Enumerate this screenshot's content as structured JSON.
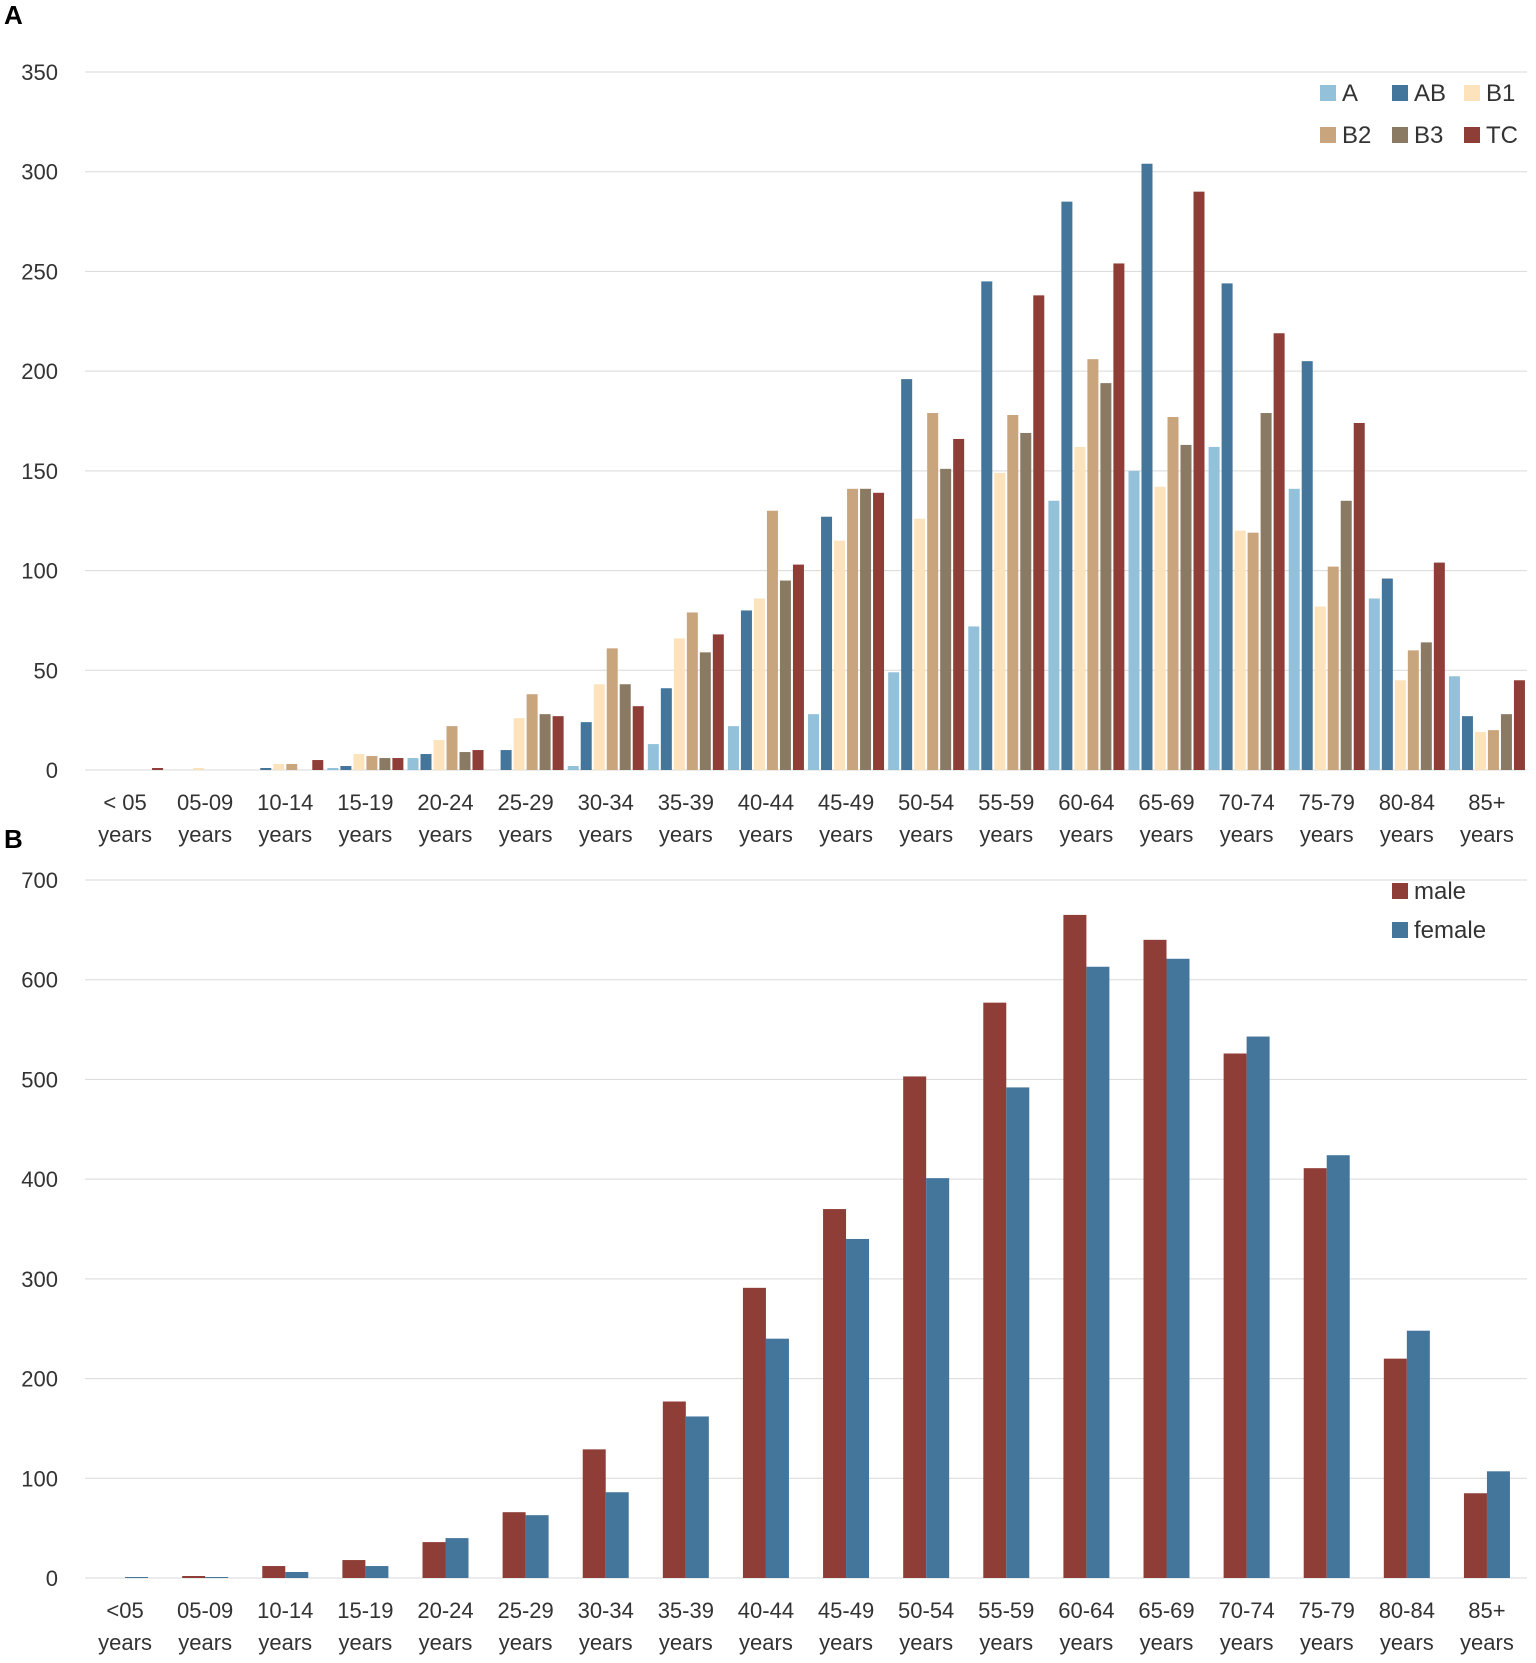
{
  "chart_data": [
    {
      "panel_label": "A",
      "type": "bar",
      "categories": [
        [
          "< 05",
          "years"
        ],
        [
          "05-09",
          "years"
        ],
        [
          "10-14",
          "years"
        ],
        [
          "15-19",
          "years"
        ],
        [
          "20-24",
          "years"
        ],
        [
          "25-29",
          "years"
        ],
        [
          "30-34",
          "years"
        ],
        [
          "35-39",
          "years"
        ],
        [
          "40-44",
          "years"
        ],
        [
          "45-49",
          "years"
        ],
        [
          "50-54",
          "years"
        ],
        [
          "55-59",
          "years"
        ],
        [
          "60-64",
          "years"
        ],
        [
          "65-69",
          "years"
        ],
        [
          "70-74",
          "years"
        ],
        [
          "75-79",
          "years"
        ],
        [
          "80-84",
          "years"
        ],
        [
          "85+",
          "years"
        ]
      ],
      "ylim": [
        0,
        350
      ],
      "yticks": [
        0,
        50,
        100,
        150,
        200,
        250,
        300,
        350
      ],
      "grid": true,
      "legend_position": "top-right",
      "series": [
        {
          "name": "A",
          "color": "#93c1d9",
          "values": [
            0,
            0,
            0,
            1,
            6,
            0,
            2,
            13,
            22,
            28,
            49,
            72,
            135,
            150,
            162,
            141,
            86,
            47
          ]
        },
        {
          "name": "AB",
          "color": "#44759a",
          "values": [
            0,
            0,
            1,
            2,
            8,
            10,
            24,
            41,
            80,
            127,
            196,
            245,
            285,
            304,
            244,
            205,
            96,
            27
          ]
        },
        {
          "name": "B1",
          "color": "#fce3bb",
          "values": [
            0,
            1,
            3,
            8,
            15,
            26,
            43,
            66,
            86,
            115,
            126,
            149,
            162,
            142,
            120,
            82,
            45,
            19
          ]
        },
        {
          "name": "B2",
          "color": "#c9a57d",
          "values": [
            0,
            0,
            3,
            7,
            22,
            38,
            61,
            79,
            130,
            141,
            179,
            178,
            206,
            177,
            119,
            102,
            60,
            20
          ]
        },
        {
          "name": "B3",
          "color": "#8b7a63",
          "values": [
            0,
            0,
            0,
            6,
            9,
            28,
            43,
            59,
            95,
            141,
            151,
            169,
            194,
            163,
            179,
            135,
            64,
            28
          ]
        },
        {
          "name": "TC",
          "color": "#8f3e37",
          "values": [
            1,
            0,
            5,
            6,
            10,
            27,
            32,
            68,
            103,
            139,
            166,
            238,
            254,
            290,
            219,
            174,
            104,
            45
          ]
        }
      ]
    },
    {
      "panel_label": "B",
      "type": "bar",
      "categories": [
        [
          "<05",
          "years"
        ],
        [
          "05-09",
          "years"
        ],
        [
          "10-14",
          "years"
        ],
        [
          "15-19",
          "years"
        ],
        [
          "20-24",
          "years"
        ],
        [
          "25-29",
          "years"
        ],
        [
          "30-34",
          "years"
        ],
        [
          "35-39",
          "years"
        ],
        [
          "40-44",
          "years"
        ],
        [
          "45-49",
          "years"
        ],
        [
          "50-54",
          "years"
        ],
        [
          "55-59",
          "years"
        ],
        [
          "60-64",
          "years"
        ],
        [
          "65-69",
          "years"
        ],
        [
          "70-74",
          "years"
        ],
        [
          "75-79",
          "years"
        ],
        [
          "80-84",
          "years"
        ],
        [
          "85+",
          "years"
        ]
      ],
      "ylim": [
        0,
        700
      ],
      "yticks": [
        0,
        100,
        200,
        300,
        400,
        500,
        600,
        700
      ],
      "grid": true,
      "legend_position": "top-right",
      "series": [
        {
          "name": "male",
          "color": "#8f3e37",
          "values": [
            0,
            2,
            12,
            18,
            36,
            66,
            129,
            177,
            291,
            370,
            503,
            577,
            665,
            640,
            526,
            411,
            220,
            85
          ]
        },
        {
          "name": "female",
          "color": "#44759a",
          "values": [
            1,
            1,
            6,
            12,
            40,
            63,
            86,
            162,
            240,
            340,
            401,
            492,
            613,
            621,
            543,
            424,
            248,
            107
          ]
        }
      ]
    }
  ]
}
